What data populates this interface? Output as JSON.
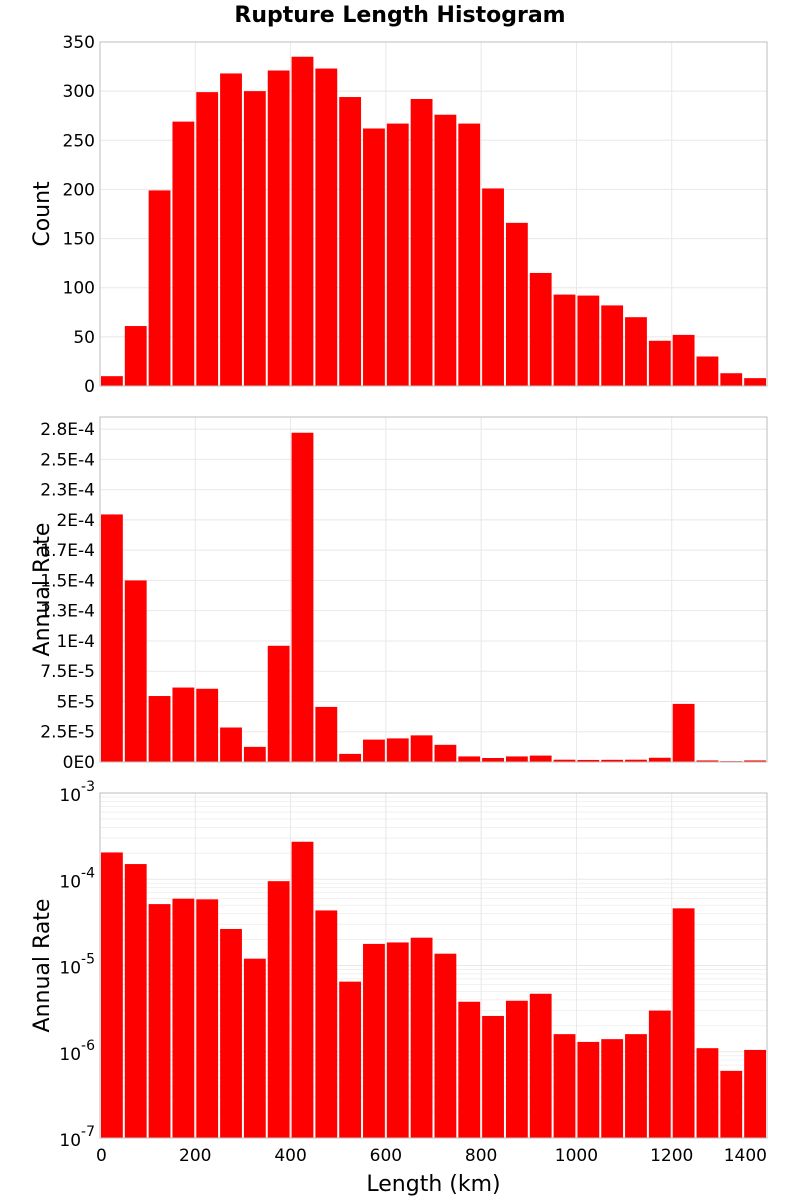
{
  "chart_data": {
    "type": "bar",
    "title": "Rupture Length Histogram",
    "color": "#ff0000",
    "grid": true,
    "x": {
      "label": "Length (km)",
      "lim": [
        0,
        1400
      ],
      "ticks": [
        0,
        200,
        400,
        600,
        800,
        1000,
        1200,
        1400
      ],
      "bin_width": 50,
      "bin_starts": [
        0,
        50,
        100,
        150,
        200,
        250,
        300,
        350,
        400,
        450,
        500,
        550,
        600,
        650,
        700,
        750,
        800,
        850,
        900,
        950,
        1000,
        1050,
        1100,
        1150,
        1200,
        1250,
        1300,
        1350
      ]
    },
    "panels": [
      {
        "ylabel": "Count",
        "scale": "linear",
        "ylim": [
          0,
          350
        ],
        "yticks": [
          {
            "v": 0,
            "label": "0"
          },
          {
            "v": 50,
            "label": "50"
          },
          {
            "v": 100,
            "label": "100"
          },
          {
            "v": 150,
            "label": "150"
          },
          {
            "v": 200,
            "label": "200"
          },
          {
            "v": 250,
            "label": "250"
          },
          {
            "v": 300,
            "label": "300"
          },
          {
            "v": 350,
            "label": "350"
          }
        ],
        "values": [
          10,
          61,
          199,
          269,
          299,
          318,
          300,
          321,
          335,
          323,
          294,
          262,
          267,
          292,
          276,
          267,
          201,
          166,
          115,
          93,
          92,
          82,
          70,
          46,
          52,
          30,
          13,
          8
        ]
      },
      {
        "ylabel": "Annual Rate",
        "scale": "linear",
        "ylim": [
          0,
          0.000285
        ],
        "yticks": [
          {
            "v": 0,
            "label": "0E0"
          },
          {
            "v": 2.5e-05,
            "label": "2.5E-5"
          },
          {
            "v": 5e-05,
            "label": "5E-5"
          },
          {
            "v": 7.5e-05,
            "label": "7.5E-5"
          },
          {
            "v": 0.0001,
            "label": "1E-4"
          },
          {
            "v": 0.000125,
            "label": "1.3E-4"
          },
          {
            "v": 0.00015,
            "label": "1.5E-4"
          },
          {
            "v": 0.000175,
            "label": "1.7E-4"
          },
          {
            "v": 0.0002,
            "label": "2E-4"
          },
          {
            "v": 0.000225,
            "label": "2.3E-4"
          },
          {
            "v": 0.00025,
            "label": "2.5E-4"
          },
          {
            "v": 0.000275,
            "label": "2.8E-4"
          }
        ],
        "values": [
          0.0002045,
          0.00015,
          5.45e-05,
          6.15e-05,
          6.05e-05,
          2.85e-05,
          1.25e-05,
          9.6e-05,
          0.000272,
          4.55e-05,
          6.7e-06,
          1.85e-05,
          1.95e-05,
          2.2e-05,
          1.42e-05,
          4.6e-06,
          3.3e-06,
          4.6e-06,
          5.3e-06,
          1.9e-06,
          1.7e-06,
          1.8e-06,
          1.9e-06,
          3.5e-06,
          4.8e-05,
          1.3e-06,
          7e-07,
          1.3e-06
        ]
      },
      {
        "ylabel": "Annual Rate",
        "scale": "log",
        "ylim": [
          1e-07,
          0.001
        ],
        "yticks": [
          {
            "v": 1e-07,
            "base": "10",
            "exp": "-7"
          },
          {
            "v": 1e-06,
            "base": "10",
            "exp": "-6"
          },
          {
            "v": 1e-05,
            "base": "10",
            "exp": "-5"
          },
          {
            "v": 0.0001,
            "base": "10",
            "exp": "-4"
          },
          {
            "v": 0.001,
            "base": "10",
            "exp": "-3"
          }
        ],
        "values": [
          0.0002045,
          0.00015,
          5.15e-05,
          5.95e-05,
          5.85e-05,
          2.65e-05,
          1.2e-05,
          9.5e-05,
          0.000272,
          4.35e-05,
          6.5e-06,
          1.78e-05,
          1.85e-05,
          2.1e-05,
          1.37e-05,
          3.8e-06,
          2.6e-06,
          3.9e-06,
          4.7e-06,
          1.6e-06,
          1.3e-06,
          1.4e-06,
          1.6e-06,
          3e-06,
          4.6e-05,
          1.1e-06,
          6e-07,
          1.05e-06
        ]
      }
    ]
  }
}
